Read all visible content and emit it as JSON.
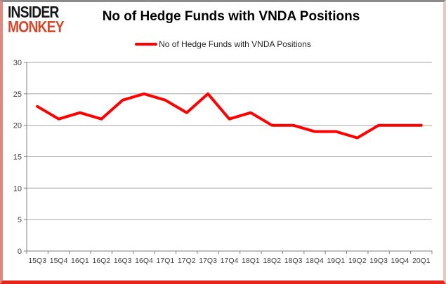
{
  "brand": {
    "line1": "INSIDER",
    "line2": "MONKEY"
  },
  "header": {
    "title": "No of Hedge Funds with VNDA Positions"
  },
  "legend": {
    "label": "No of Hedge Funds with VNDA Positions"
  },
  "colors": {
    "accent": "#ff0000",
    "brand_red": "#d3492c",
    "border_bottom": "#e8251a",
    "border_top": "#8a8a8a",
    "grid": "#a6a6a6",
    "axis": "#808080",
    "tick_text": "#3f3f3f"
  },
  "chart_data": {
    "type": "line",
    "title": "No of Hedge Funds with VNDA Positions",
    "categories": [
      "15Q3",
      "15Q4",
      "16Q1",
      "16Q2",
      "16Q3",
      "16Q4",
      "17Q1",
      "17Q2",
      "17Q3",
      "17Q4",
      "18Q1",
      "18Q2",
      "18Q3",
      "18Q4",
      "19Q1",
      "19Q2",
      "19Q3",
      "19Q4",
      "20Q1"
    ],
    "series": [
      {
        "name": "No of Hedge Funds with VNDA Positions",
        "values": [
          23,
          21,
          22,
          21,
          24,
          25,
          24,
          22,
          25,
          21,
          22,
          20,
          20,
          19,
          19,
          18,
          20,
          20,
          20
        ]
      }
    ],
    "xlabel": "",
    "ylabel": "",
    "ylim": [
      0,
      30
    ],
    "yticks": [
      0,
      5,
      10,
      15,
      20,
      25,
      30
    ],
    "grid": true,
    "legend_position": "top",
    "line_color": "#ff0000",
    "line_width": 4
  }
}
